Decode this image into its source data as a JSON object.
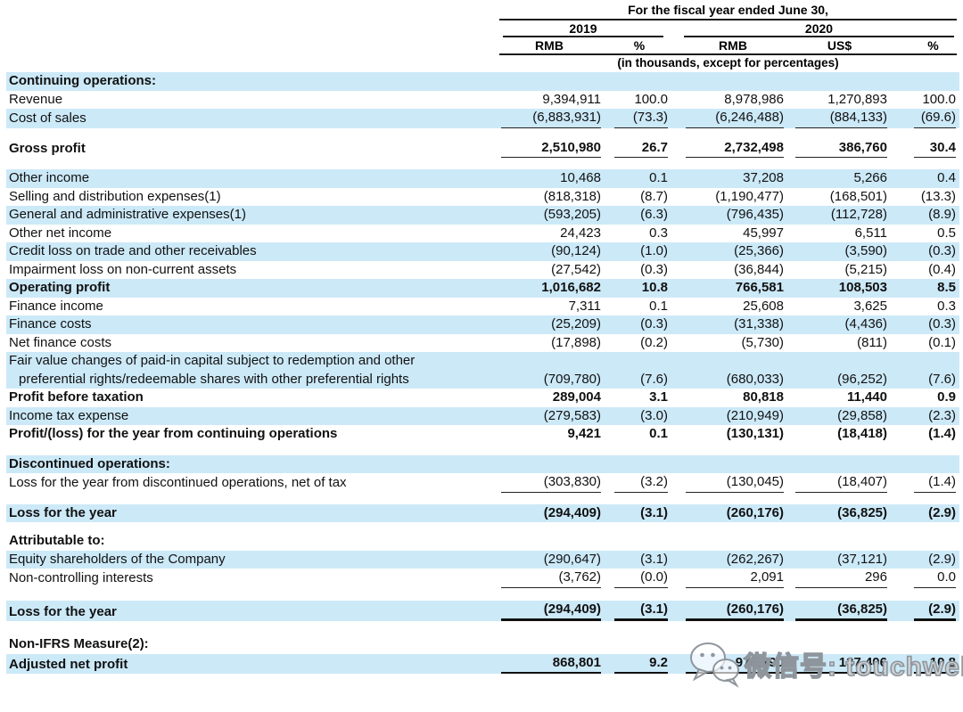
{
  "header": {
    "title": "For the fiscal year ended June 30,",
    "groups": [
      {
        "year": "2019",
        "columns": [
          "RMB",
          "%"
        ]
      },
      {
        "year": "2020",
        "columns": [
          "RMB",
          "US$",
          "%"
        ]
      }
    ],
    "note": "(in thousands, except for percentages)"
  },
  "rows": [
    {
      "label": "Continuing operations:",
      "bold": true,
      "stripe": true
    },
    {
      "label": "Revenue",
      "values": [
        "9,394,911",
        "100.0",
        "8,978,986",
        "1,270,893",
        "100.0"
      ]
    },
    {
      "label": "Cost of sales",
      "stripe": true,
      "underline": "single",
      "values": [
        "(6,883,931)",
        "(73.3)",
        "(6,246,488)",
        "(884,133)",
        "(69.6)"
      ]
    },
    {
      "type": "spacer",
      "height": 12
    },
    {
      "label": "Gross profit",
      "bold": true,
      "underline": "single",
      "values": [
        "2,510,980",
        "26.7",
        "2,732,498",
        "386,760",
        "30.4"
      ]
    },
    {
      "type": "spacer",
      "height": 13
    },
    {
      "label": "Other income",
      "stripe": true,
      "values": [
        "10,468",
        "0.1",
        "37,208",
        "5,266",
        "0.4"
      ]
    },
    {
      "label": "Selling and distribution expenses(1)",
      "values": [
        "(818,318)",
        "(8.7)",
        "(1,190,477)",
        "(168,501)",
        "(13.3)"
      ]
    },
    {
      "label": "General and administrative expenses(1)",
      "stripe": true,
      "values": [
        "(593,205)",
        "(6.3)",
        "(796,435)",
        "(112,728)",
        "(8.9)"
      ]
    },
    {
      "label": "Other net income",
      "values": [
        "24,423",
        "0.3",
        "45,997",
        "6,511",
        "0.5"
      ]
    },
    {
      "label": "Credit loss on trade and other receivables",
      "stripe": true,
      "values": [
        "(90,124)",
        "(1.0)",
        "(25,366)",
        "(3,590)",
        "(0.3)"
      ]
    },
    {
      "label": "Impairment loss on non-current assets",
      "values": [
        "(27,542)",
        "(0.3)",
        "(36,844)",
        "(5,215)",
        "(0.4)"
      ]
    },
    {
      "label": "Operating profit",
      "bold": true,
      "stripe": true,
      "values": [
        "1,016,682",
        "10.8",
        "766,581",
        "108,503",
        "8.5"
      ]
    },
    {
      "label": "Finance income",
      "values": [
        "7,311",
        "0.1",
        "25,608",
        "3,625",
        "0.3"
      ]
    },
    {
      "label": "Finance costs",
      "stripe": true,
      "values": [
        "(25,209)",
        "(0.3)",
        "(31,338)",
        "(4,436)",
        "(0.3)"
      ]
    },
    {
      "label": "Net finance costs",
      "values": [
        "(17,898)",
        "(0.2)",
        "(5,730)",
        "(811)",
        "(0.1)"
      ]
    },
    {
      "label": "Fair value changes of paid-in capital subject to redemption and other",
      "label2": "preferential rights/redeemable shares with other preferential rights",
      "stripe": true,
      "values": [
        "(709,780)",
        "(7.6)",
        "(680,033)",
        "(96,252)",
        "(7.6)"
      ]
    },
    {
      "label": "Profit before taxation",
      "bold": true,
      "values": [
        "289,004",
        "3.1",
        "80,818",
        "11,440",
        "0.9"
      ]
    },
    {
      "label": "Income tax expense",
      "stripe": true,
      "values": [
        "(279,583)",
        "(3.0)",
        "(210,949)",
        "(29,858)",
        "(2.3)"
      ]
    },
    {
      "label": "Profit/(loss) for the year from continuing operations",
      "bold": true,
      "values": [
        "9,421",
        "0.1",
        "(130,131)",
        "(18,418)",
        "(1.4)"
      ]
    },
    {
      "type": "spacer",
      "height": 13
    },
    {
      "label": "Discontinued operations:",
      "bold": true,
      "stripe": true
    },
    {
      "label": "Loss for the year from discontinued operations, net of tax",
      "underline": "single",
      "values": [
        "(303,830)",
        "(3.2)",
        "(130,045)",
        "(18,407)",
        "(1.4)"
      ]
    },
    {
      "type": "spacer",
      "height": 13
    },
    {
      "label": "Loss for the year",
      "bold": true,
      "stripe": true,
      "values": [
        "(294,409)",
        "(3.1)",
        "(260,176)",
        "(36,825)",
        "(2.9)"
      ]
    },
    {
      "type": "spacer",
      "height": 11
    },
    {
      "label": "Attributable to:",
      "bold": true
    },
    {
      "label": "Equity shareholders of the Company",
      "stripe": true,
      "values": [
        "(290,647)",
        "(3.1)",
        "(262,267)",
        "(37,121)",
        "(2.9)"
      ]
    },
    {
      "label": "Non-controlling interests",
      "underline": "single",
      "values": [
        "(3,762)",
        "(0.0)",
        "2,091",
        "296",
        "0.0"
      ]
    },
    {
      "type": "spacer",
      "height": 14
    },
    {
      "label": "Loss for the year",
      "bold": true,
      "stripe": true,
      "underline": "thick",
      "values": [
        "(294,409)",
        "(3.1)",
        "(260,176)",
        "(36,825)",
        "(2.9)"
      ]
    },
    {
      "type": "spacer",
      "height": 16
    },
    {
      "label": "Non-IFRS Measure(2):",
      "bold": true
    },
    {
      "label": "Adjusted net profit",
      "bold": true,
      "stripe": true,
      "underline": "medium",
      "values": [
        "868,801",
        "9.2",
        "970,790",
        "137,406",
        "10.8"
      ]
    }
  ],
  "watermark": {
    "icon": "wechat-icon",
    "text": "微信号: touchweb"
  },
  "colors": {
    "stripe": "#cce9f8",
    "text": "#111111",
    "rule": "#1a1a1a",
    "watermark": "#9aa0a6"
  }
}
